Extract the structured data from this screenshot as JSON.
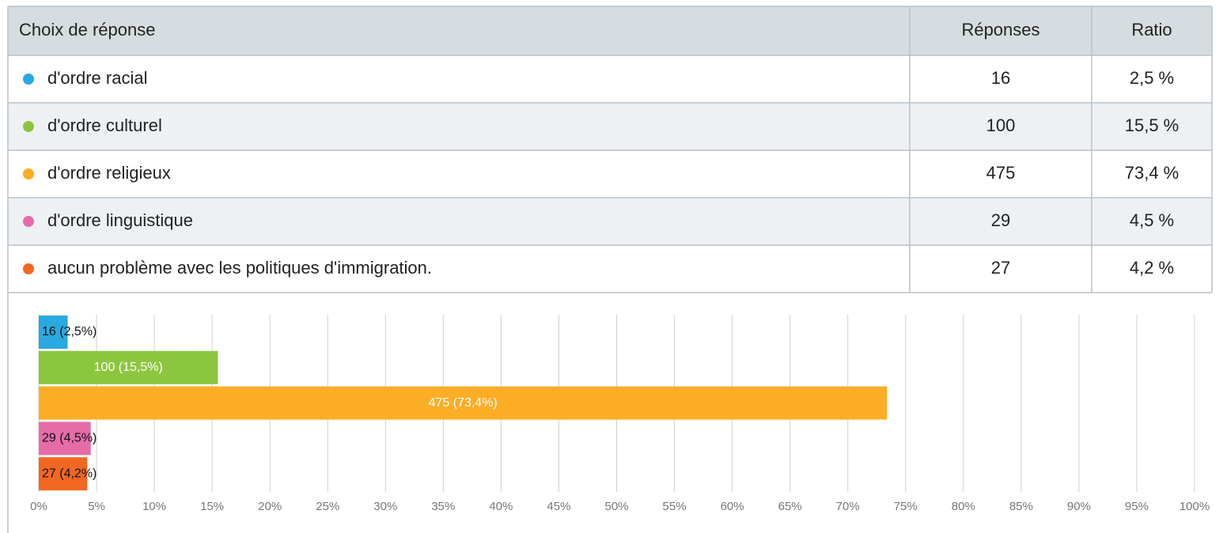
{
  "table": {
    "header": [
      "Choix de réponse",
      "Réponses",
      "Ratio"
    ],
    "rows": [
      [
        "d'ordre racial",
        "16",
        "2,5 %"
      ],
      [
        "d'ordre culturel",
        "100",
        "15,5 %"
      ],
      [
        "d'ordre religieux",
        "475",
        "73,4 %"
      ],
      [
        "d'ordre linguistique",
        "29",
        "4,5 %"
      ],
      [
        "aucun problème avec les politiques d'immigration.",
        "27",
        "4,2 %"
      ]
    ]
  },
  "chart_data": {
    "type": "barh",
    "categories": [
      "d'ordre racial",
      "d'ordre culturel",
      "d'ordre religieux",
      "d'ordre linguistique",
      "aucun problème avec les politiques d'immigration."
    ],
    "values": [
      2.5,
      15.5,
      73.4,
      4.5,
      4.2
    ],
    "value_labels": [
      "16 (2,5%)",
      "100 (15,5%)",
      "475 (73,4%)",
      "29 (4,5%)",
      "27 (4,2%)"
    ],
    "colors": [
      "#29a9e0",
      "#8cc63f",
      "#fbad26",
      "#e66ca8",
      "#f26722"
    ],
    "xlim": [
      0,
      100
    ],
    "xticks": [
      {
        "value": 0,
        "label": "0%"
      },
      {
        "value": 5,
        "label": "5%"
      },
      {
        "value": 10,
        "label": "10%"
      },
      {
        "value": 15,
        "label": "15%"
      },
      {
        "value": 20,
        "label": "20%"
      },
      {
        "value": 25,
        "label": "25%"
      },
      {
        "value": 30,
        "label": "30%"
      },
      {
        "value": 35,
        "label": "35%"
      },
      {
        "value": 40,
        "label": "40%"
      },
      {
        "value": 45,
        "label": "45%"
      },
      {
        "value": 50,
        "label": "50%"
      },
      {
        "value": 55,
        "label": "55%"
      },
      {
        "value": 60,
        "label": "60%"
      },
      {
        "value": 65,
        "label": "65%"
      },
      {
        "value": 70,
        "label": "70%"
      },
      {
        "value": 75,
        "label": "75%"
      },
      {
        "value": 80,
        "label": "80%"
      },
      {
        "value": 85,
        "label": "85%"
      },
      {
        "value": 90,
        "label": "90%"
      },
      {
        "value": 95,
        "label": "95%"
      },
      {
        "value": 100,
        "label": "100%"
      }
    ],
    "grid": true
  }
}
